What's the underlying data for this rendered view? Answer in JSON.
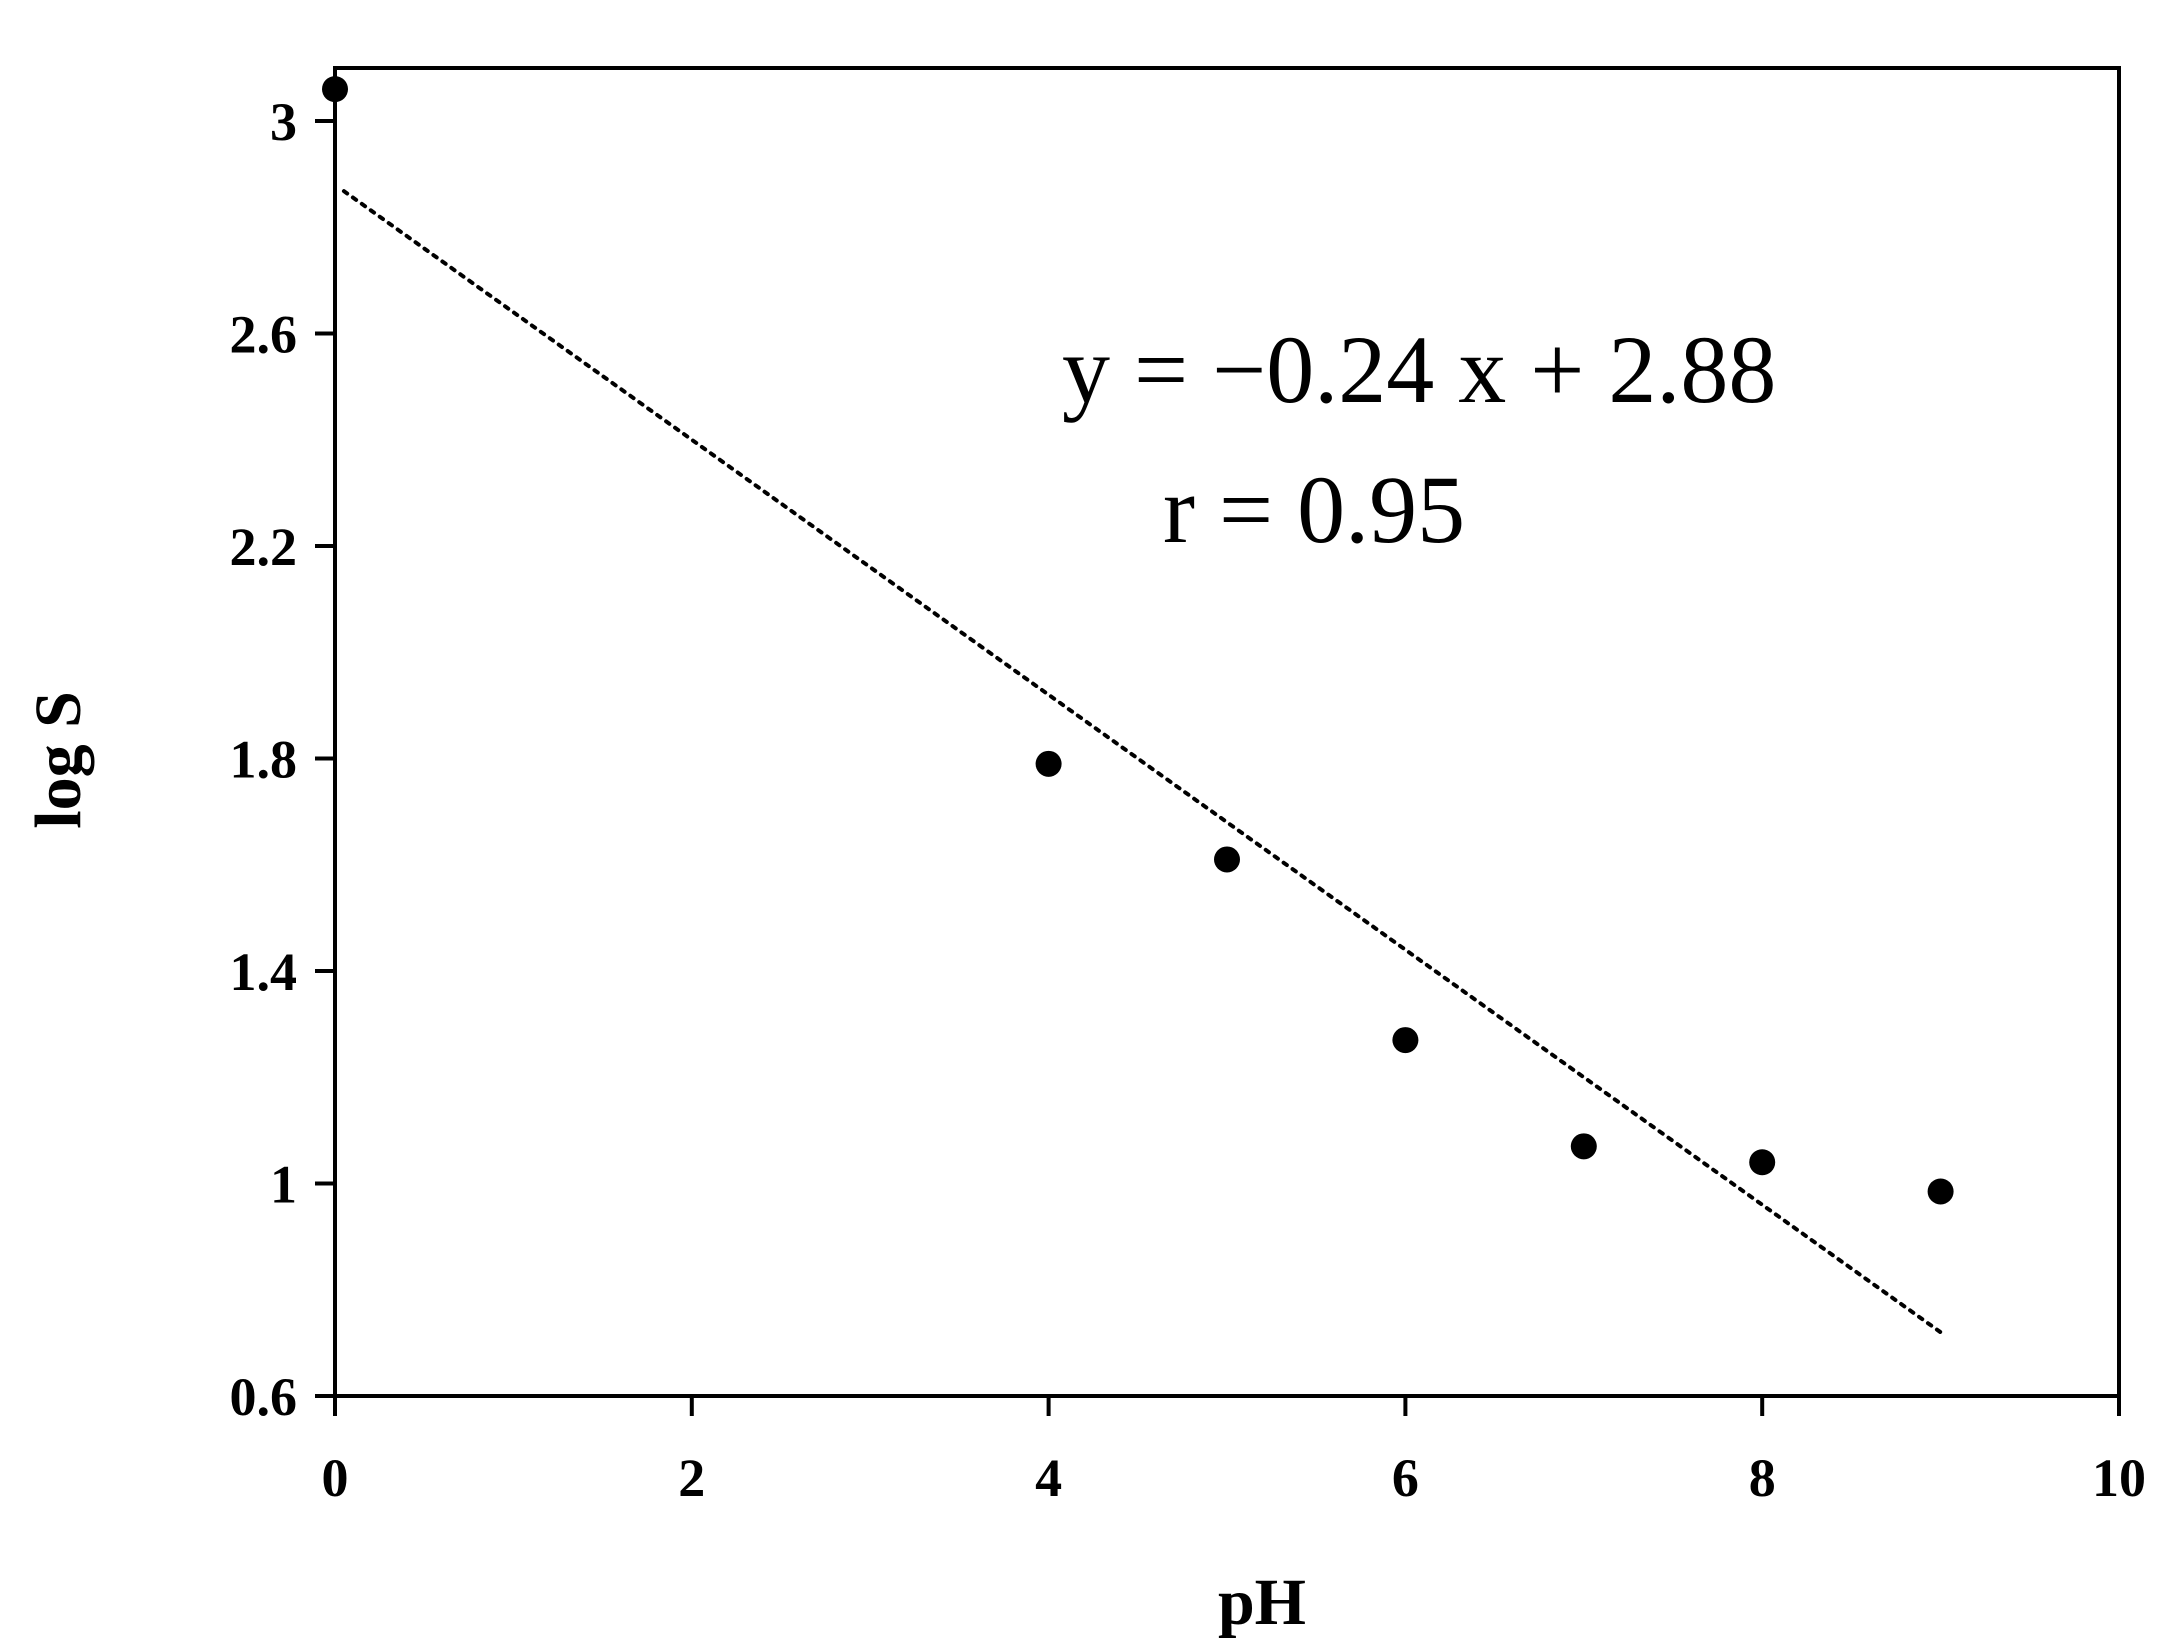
{
  "chart_data": {
    "type": "scatter",
    "title": "",
    "xlabel": "pH",
    "ylabel": "log S",
    "xlim": [
      0,
      10
    ],
    "ylim": [
      0.6,
      3.1
    ],
    "xticks": [
      0,
      2,
      4,
      6,
      8,
      10
    ],
    "yticks": [
      0.6,
      1,
      1.4,
      1.8,
      2.2,
      2.6,
      3
    ],
    "xtick_labels": [
      "0",
      "2",
      "4",
      "6",
      "8",
      "10"
    ],
    "ytick_labels": [
      "0.6",
      "1",
      "1.4",
      "1.8",
      "2.2",
      "2.6",
      "3"
    ],
    "grid": false,
    "series": [
      {
        "points": [
          {
            "x": 0,
            "y": 3.06
          },
          {
            "x": 4,
            "y": 1.79
          },
          {
            "x": 5,
            "y": 1.61
          },
          {
            "x": 6,
            "y": 1.27
          },
          {
            "x": 7,
            "y": 1.07
          },
          {
            "x": 8,
            "y": 1.04
          },
          {
            "x": 9,
            "y": 0.985
          }
        ],
        "color": "#000000"
      }
    ],
    "trendline": {
      "slope": -0.24,
      "intercept": 2.88,
      "x_range": [
        0.05,
        9.0
      ],
      "style": "dotted",
      "color": "#000000"
    },
    "annotations": [
      {
        "text": "y = −0.24 x + 2.88"
      },
      {
        "text": "r = 0.95"
      }
    ]
  }
}
